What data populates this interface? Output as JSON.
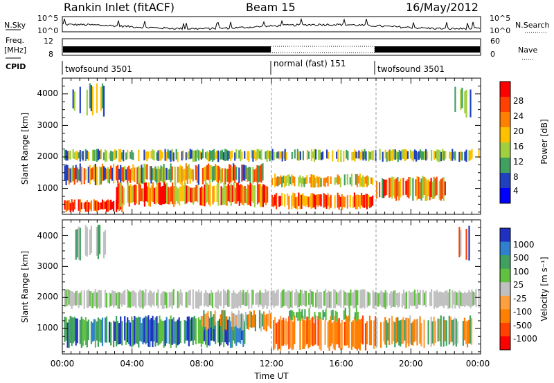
{
  "header": {
    "station": "Rankin Inlet (fitACF)",
    "beam": "Beam 15",
    "date": "16/May/2012"
  },
  "top_panels": {
    "nsky_label": "N.Sky",
    "nsky_ticks": [
      "10^5",
      "10^0"
    ],
    "nsky_ticks_right": [
      "10^5",
      "10^0"
    ],
    "nsearch_label": "N.Search",
    "freq_label": "Freq.",
    "freq_unit": "[MHz]",
    "freq_ticks": [
      "12",
      "8"
    ],
    "nave_ticks": [
      "60",
      "0"
    ],
    "nave_label": "Nave",
    "cpid_label": "CPID",
    "cpid_segments": [
      {
        "label": "twofsound 3501",
        "start_hour": 0,
        "end_hour": 12
      },
      {
        "label": "normal (fast) 151",
        "start_hour": 12,
        "end_hour": 18
      },
      {
        "label": "twofsound 3501",
        "start_hour": 18,
        "end_hour": 24
      }
    ]
  },
  "chart_data": [
    {
      "type": "heatmap",
      "name": "power",
      "ylabel": "Slant Range [km]",
      "xlabel": "",
      "xlim": [
        0,
        24
      ],
      "ylim": [
        180,
        4500
      ],
      "y_ticks": [
        "1000",
        "2000",
        "3000",
        "4000"
      ],
      "x_ticks": [
        "00:00",
        "04:00",
        "08:00",
        "12:00",
        "16:00",
        "20:00",
        "00:00"
      ],
      "colorbar": {
        "label": "Power [dB]",
        "ticks": [
          "28",
          "24",
          "20",
          "16",
          "12",
          "8",
          "4"
        ],
        "colors": [
          "#ff0000",
          "#ff4000",
          "#ff8000",
          "#ffc000",
          "#a0d040",
          "#40a060",
          "#2040c0",
          "#0000ff"
        ]
      },
      "markers_hours": [
        12,
        18
      ]
    },
    {
      "type": "heatmap",
      "name": "velocity",
      "ylabel": "Slant Range [km]",
      "xlabel": "Time UT",
      "xlim": [
        0,
        24
      ],
      "ylim": [
        180,
        4500
      ],
      "y_ticks": [
        "1000",
        "2000",
        "3000",
        "4000"
      ],
      "x_ticks": [
        "00:00",
        "04:00",
        "08:00",
        "12:00",
        "16:00",
        "20:00",
        "00:00"
      ],
      "colorbar": {
        "label": "Velocity [m s⁻¹]",
        "ticks": [
          "1000",
          "500",
          "100",
          "25",
          "-25",
          "-100",
          "-500",
          "-1000"
        ],
        "colors": [
          "#2030c0",
          "#3080d0",
          "#40a060",
          "#60c040",
          "#c0c0c0",
          "#ffa040",
          "#ff8000",
          "#ff4000",
          "#ff0000"
        ]
      },
      "markers_hours": [
        12,
        18
      ]
    }
  ]
}
